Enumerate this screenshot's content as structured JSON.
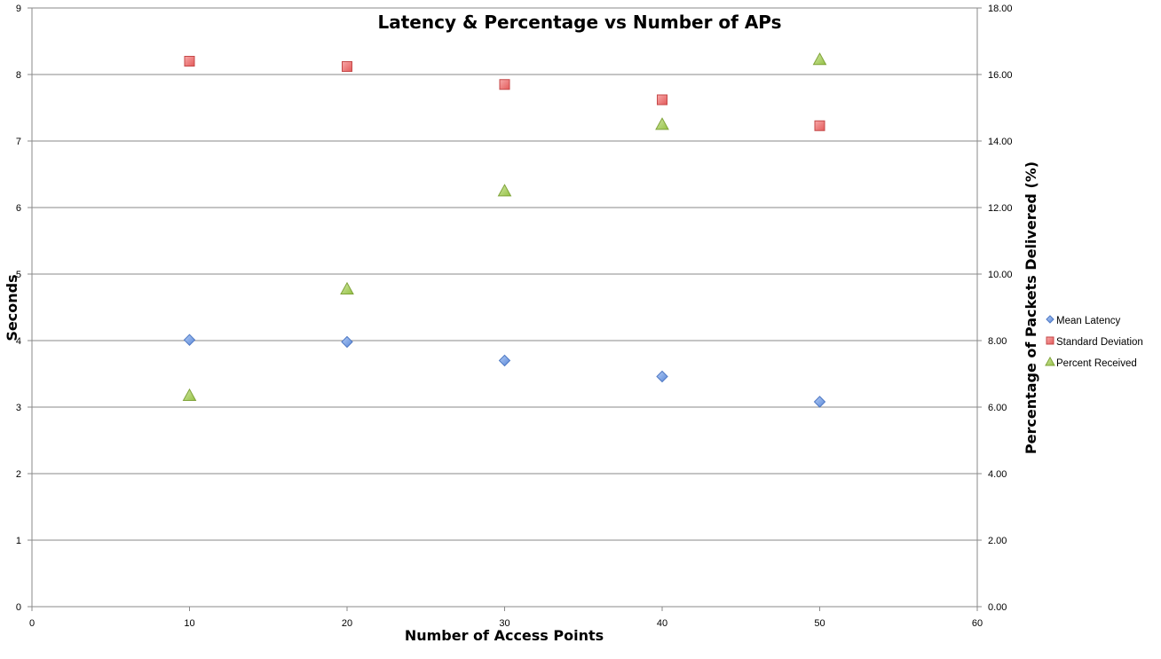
{
  "chart_data": {
    "type": "scatter",
    "title": "Latency & Percentage vs Number of APs",
    "xlabel": "Number of Access Points",
    "ylabel": "Seconds",
    "y2label": "Percentage of Packets Delivered (%)",
    "xlim": [
      0,
      60
    ],
    "ylim": [
      0,
      9
    ],
    "y2lim": [
      0,
      18
    ],
    "xticks": [
      "0",
      "10",
      "20",
      "30",
      "40",
      "50",
      "60"
    ],
    "yticks": [
      "0",
      "1",
      "2",
      "3",
      "4",
      "5",
      "6",
      "7",
      "8",
      "9"
    ],
    "y2ticks": [
      "0.00",
      "2.00",
      "4.00",
      "6.00",
      "8.00",
      "10.00",
      "12.00",
      "14.00",
      "16.00",
      "18.00"
    ],
    "grid": true,
    "legend_position": "right",
    "series": [
      {
        "name": "Mean Latency",
        "axis": "left",
        "marker": "diamond",
        "color": "#6f9ce8",
        "x": [
          10,
          20,
          30,
          40,
          50
        ],
        "values": [
          4.01,
          3.98,
          3.7,
          3.46,
          3.08
        ]
      },
      {
        "name": "Standard Deviation",
        "axis": "left",
        "marker": "square",
        "color": "#f07070",
        "x": [
          10,
          20,
          30,
          40,
          50
        ],
        "values": [
          8.2,
          8.12,
          7.85,
          7.62,
          7.23
        ]
      },
      {
        "name": "Percent Received",
        "axis": "right",
        "marker": "triangle",
        "color": "#a4cc58",
        "x": [
          10,
          20,
          30,
          40,
          50
        ],
        "values": [
          6.35,
          9.55,
          12.5,
          14.5,
          16.45
        ]
      }
    ]
  }
}
